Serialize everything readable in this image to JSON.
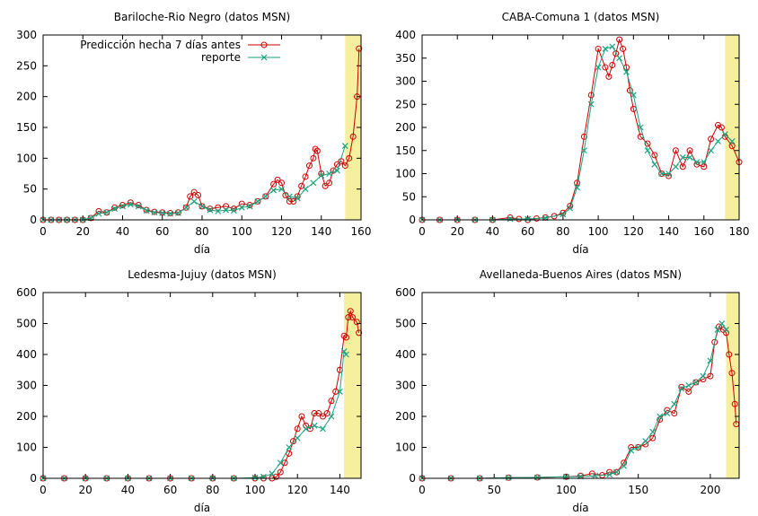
{
  "colors": {
    "prediction": "#cc0000",
    "report": "#1aa37f",
    "highlight": "#f5ef9e"
  },
  "chart_data": [
    {
      "type": "line",
      "title": "Bariloche-Rio Negro (datos MSN)",
      "xlabel": "día",
      "ylabel": "",
      "xlim": [
        0,
        160
      ],
      "ylim": [
        0,
        300
      ],
      "xticks": [
        0,
        20,
        40,
        60,
        80,
        100,
        120,
        140,
        160
      ],
      "yticks": [
        0,
        50,
        100,
        150,
        200,
        250,
        300
      ],
      "highlight": [
        152,
        160
      ],
      "legend": {
        "position": "top-left",
        "entries": [
          "Predicción hecha 7 días antes",
          "reporte"
        ]
      },
      "series": [
        {
          "name": "Predicción hecha 7 días antes",
          "x": [
            0,
            4,
            8,
            12,
            16,
            20,
            24,
            28,
            32,
            36,
            40,
            44,
            48,
            52,
            56,
            60,
            64,
            68,
            72,
            74,
            76,
            78,
            80,
            84,
            88,
            92,
            96,
            100,
            104,
            108,
            112,
            116,
            118,
            120,
            122,
            124,
            126,
            128,
            130,
            132,
            134,
            136,
            137,
            138,
            140,
            142,
            144,
            146,
            148,
            150,
            152,
            154,
            156,
            158,
            159
          ],
          "y": [
            0,
            0,
            0,
            0,
            0,
            0,
            3,
            14,
            12,
            20,
            24,
            28,
            24,
            16,
            13,
            12,
            11,
            12,
            20,
            38,
            45,
            40,
            22,
            18,
            20,
            22,
            18,
            26,
            24,
            30,
            38,
            58,
            65,
            60,
            40,
            30,
            30,
            38,
            55,
            70,
            88,
            100,
            115,
            112,
            75,
            55,
            60,
            80,
            90,
            95,
            88,
            100,
            135,
            200,
            278
          ]
        },
        {
          "name": "reporte",
          "x": [
            0,
            4,
            8,
            12,
            16,
            20,
            24,
            28,
            32,
            36,
            40,
            44,
            48,
            52,
            56,
            60,
            64,
            68,
            72,
            76,
            80,
            84,
            88,
            92,
            96,
            100,
            104,
            108,
            112,
            116,
            120,
            124,
            128,
            132,
            136,
            140,
            144,
            148,
            152
          ],
          "y": [
            0,
            0,
            0,
            0,
            0,
            0,
            3,
            10,
            12,
            18,
            22,
            25,
            22,
            15,
            12,
            11,
            10,
            11,
            20,
            30,
            22,
            16,
            14,
            16,
            15,
            20,
            22,
            30,
            38,
            48,
            50,
            38,
            35,
            50,
            60,
            72,
            75,
            80,
            120
          ]
        }
      ]
    },
    {
      "type": "line",
      "title": "CABA-Comuna 1 (datos MSN)",
      "xlabel": "día",
      "ylabel": "",
      "xlim": [
        0,
        180
      ],
      "ylim": [
        0,
        400
      ],
      "xticks": [
        0,
        20,
        40,
        60,
        80,
        100,
        120,
        140,
        160,
        180
      ],
      "yticks": [
        0,
        50,
        100,
        150,
        200,
        250,
        300,
        350,
        400
      ],
      "highlight": [
        172,
        180
      ],
      "legend": null,
      "series": [
        {
          "name": "Predicción hecha 7 días antes",
          "x": [
            0,
            10,
            20,
            30,
            40,
            50,
            55,
            60,
            65,
            70,
            75,
            80,
            84,
            88,
            92,
            96,
            100,
            104,
            106,
            108,
            110,
            112,
            114,
            116,
            118,
            120,
            124,
            128,
            132,
            136,
            140,
            144,
            148,
            152,
            156,
            160,
            164,
            168,
            170,
            172,
            176,
            180
          ],
          "y": [
            0,
            0,
            0,
            0,
            0,
            5,
            2,
            0,
            3,
            5,
            8,
            15,
            30,
            80,
            180,
            270,
            370,
            330,
            310,
            335,
            360,
            390,
            370,
            330,
            280,
            240,
            180,
            165,
            140,
            100,
            95,
            150,
            115,
            150,
            120,
            115,
            175,
            205,
            200,
            180,
            160,
            125
          ]
        },
        {
          "name": "reporte",
          "x": [
            0,
            10,
            20,
            30,
            40,
            50,
            60,
            70,
            80,
            84,
            88,
            92,
            96,
            100,
            104,
            108,
            112,
            116,
            120,
            124,
            128,
            132,
            136,
            140,
            144,
            148,
            152,
            156,
            160,
            164,
            168,
            172,
            176
          ],
          "y": [
            0,
            0,
            0,
            0,
            0,
            2,
            2,
            4,
            12,
            25,
            70,
            150,
            250,
            330,
            370,
            375,
            350,
            320,
            270,
            200,
            150,
            120,
            100,
            100,
            115,
            135,
            135,
            125,
            125,
            150,
            170,
            185,
            170
          ]
        }
      ]
    },
    {
      "type": "line",
      "title": "Ledesma-Jujuy (datos MSN)",
      "xlabel": "día",
      "ylabel": "",
      "xlim": [
        0,
        150
      ],
      "ylim": [
        0,
        600
      ],
      "xticks": [
        0,
        20,
        40,
        60,
        80,
        100,
        120,
        140
      ],
      "yticks": [
        0,
        100,
        200,
        300,
        400,
        500,
        600
      ],
      "highlight": [
        142,
        150
      ],
      "legend": null,
      "series": [
        {
          "name": "Predicción hecha 7 días antes",
          "x": [
            0,
            10,
            20,
            30,
            40,
            50,
            60,
            70,
            80,
            90,
            100,
            104,
            108,
            110,
            112,
            114,
            116,
            118,
            120,
            122,
            124,
            126,
            128,
            130,
            132,
            134,
            136,
            138,
            140,
            142,
            143,
            144,
            145,
            146,
            148,
            149
          ],
          "y": [
            0,
            0,
            0,
            0,
            0,
            0,
            0,
            0,
            0,
            0,
            0,
            0,
            0,
            5,
            20,
            50,
            80,
            120,
            160,
            200,
            170,
            160,
            210,
            210,
            200,
            210,
            250,
            280,
            350,
            460,
            455,
            520,
            540,
            520,
            505,
            470
          ]
        },
        {
          "name": "reporte",
          "x": [
            0,
            10,
            20,
            30,
            40,
            50,
            60,
            70,
            80,
            90,
            100,
            104,
            108,
            112,
            116,
            120,
            124,
            128,
            132,
            136,
            140,
            142,
            143
          ],
          "y": [
            0,
            0,
            0,
            0,
            0,
            0,
            0,
            0,
            0,
            0,
            2,
            5,
            15,
            50,
            100,
            130,
            160,
            170,
            160,
            200,
            280,
            410,
            400
          ]
        }
      ]
    },
    {
      "type": "line",
      "title": "Avellaneda-Buenos Aires (datos MSN)",
      "xlabel": "día",
      "ylabel": "",
      "xlim": [
        0,
        220
      ],
      "ylim": [
        0,
        600
      ],
      "xticks": [
        0,
        50,
        100,
        150,
        200
      ],
      "yticks": [
        0,
        100,
        200,
        300,
        400,
        500,
        600
      ],
      "highlight": [
        211,
        220
      ],
      "legend": null,
      "series": [
        {
          "name": "Predicción hecha 7 días antes",
          "x": [
            0,
            20,
            40,
            60,
            80,
            100,
            110,
            118,
            125,
            130,
            135,
            140,
            145,
            150,
            155,
            160,
            165,
            170,
            175,
            180,
            185,
            190,
            195,
            200,
            203,
            206,
            209,
            211,
            213,
            215,
            217,
            218
          ],
          "y": [
            0,
            0,
            0,
            2,
            3,
            5,
            8,
            15,
            10,
            20,
            20,
            50,
            100,
            100,
            110,
            130,
            190,
            220,
            210,
            295,
            280,
            310,
            320,
            330,
            440,
            490,
            480,
            470,
            400,
            340,
            240,
            175
          ]
        },
        {
          "name": "reporte",
          "x": [
            0,
            20,
            40,
            60,
            80,
            100,
            110,
            120,
            130,
            135,
            140,
            145,
            150,
            155,
            160,
            165,
            170,
            175,
            180,
            185,
            190,
            195,
            200,
            205,
            208,
            211
          ],
          "y": [
            0,
            0,
            0,
            2,
            3,
            5,
            6,
            8,
            12,
            20,
            40,
            90,
            100,
            120,
            150,
            200,
            210,
            240,
            290,
            300,
            310,
            330,
            380,
            480,
            500,
            480
          ]
        }
      ]
    }
  ]
}
